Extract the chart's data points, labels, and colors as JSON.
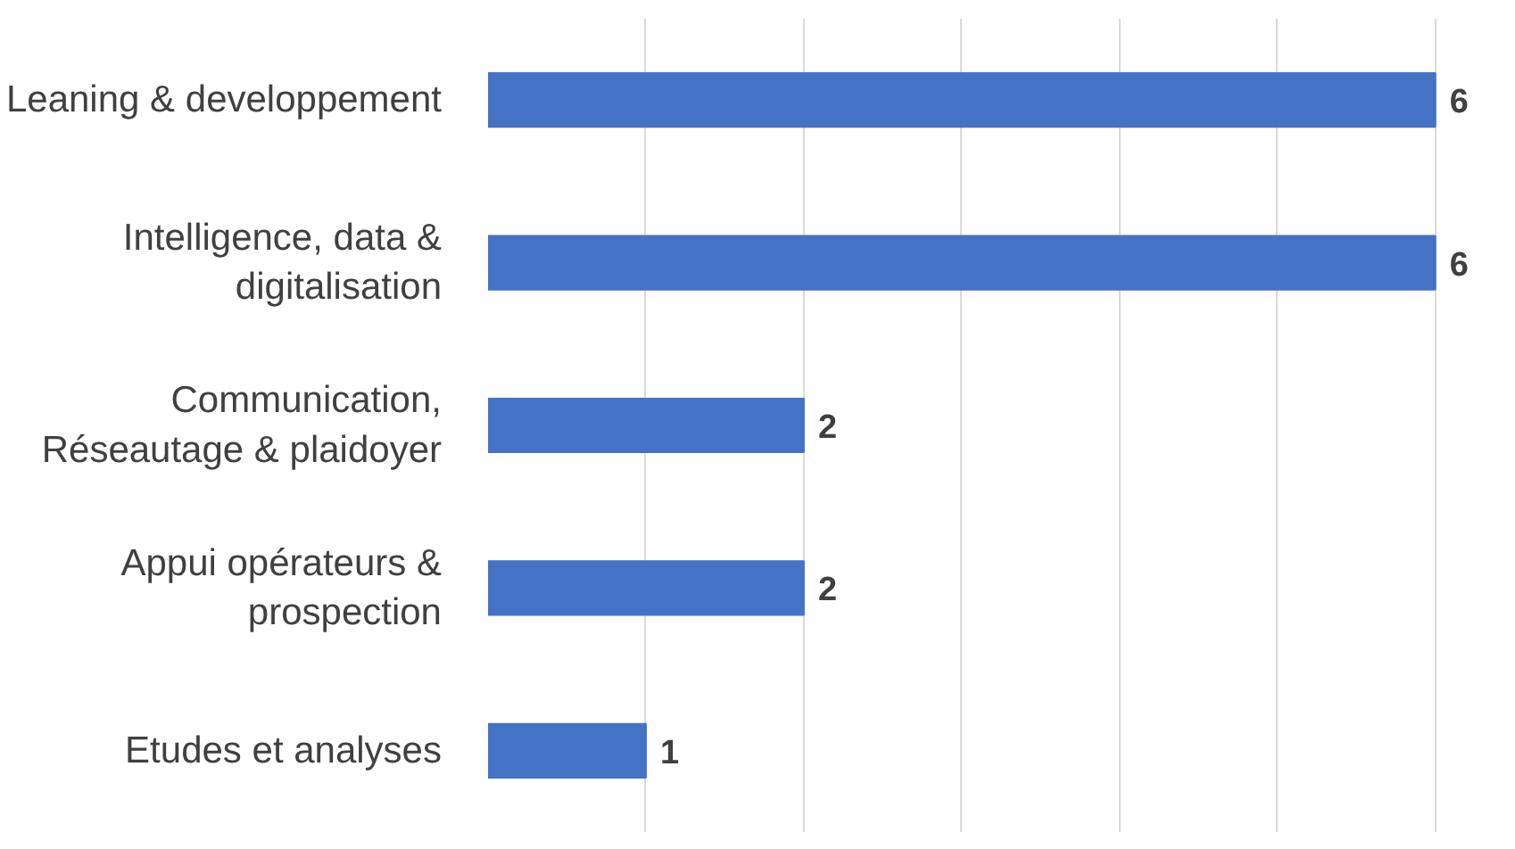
{
  "chart_data": {
    "type": "bar",
    "orientation": "horizontal",
    "categories": [
      "Leaning & developpement",
      "Intelligence, data & digitalisation",
      "Communication, Réseautage & plaidoyer",
      "Appui opérateurs & prospection",
      "Etudes et analyses"
    ],
    "values": [
      6,
      6,
      2,
      2,
      1
    ],
    "color": "#4472c4",
    "data_labels": true,
    "tick_labels": "y",
    "grid": "x"
  }
}
